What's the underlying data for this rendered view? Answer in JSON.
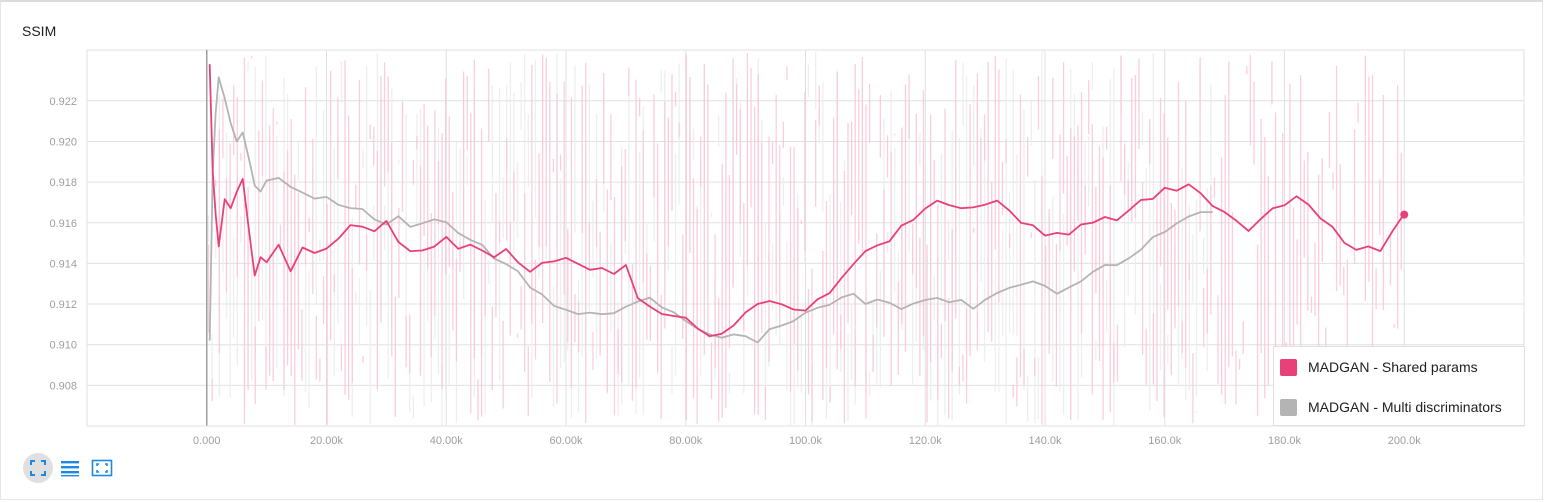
{
  "chart_title": "SSIM",
  "colors": {
    "series_0": "#e8417a",
    "series_1": "#b4b4b4",
    "series_0_raw": "#f8c6d8",
    "series_1_raw": "#ececec",
    "toolbar_icon": "#1e88e5",
    "grid": "#e0e0e0",
    "axis": "#9e9e9e"
  },
  "toolbar": {
    "fit_icon": "fit-to-data-icon",
    "log_icon": "list-lines-icon",
    "select_icon": "selection-box-icon"
  },
  "chart_data": {
    "type": "line",
    "title": "SSIM",
    "xlabel": "",
    "ylabel": "",
    "xlim": [
      -20000,
      220000
    ],
    "ylim": [
      0.906,
      0.9245
    ],
    "grid": true,
    "legend_position": "bottom-right",
    "x_ticks": [
      0,
      20000,
      40000,
      60000,
      80000,
      100000,
      120000,
      140000,
      160000,
      180000,
      200000
    ],
    "x_tick_labels": [
      "0.000",
      "20.00k",
      "40.00k",
      "60.00k",
      "80.00k",
      "100.0k",
      "120.0k",
      "140.0k",
      "160.0k",
      "180.0k",
      "200.0k"
    ],
    "y_ticks": [
      0.908,
      0.91,
      0.912,
      0.914,
      0.916,
      0.918,
      0.92,
      0.922
    ],
    "y_tick_labels": [
      "0.908",
      "0.910",
      "0.912",
      "0.914",
      "0.916",
      "0.918",
      "0.920",
      "0.922"
    ],
    "series": [
      {
        "name": "MADGAN - Shared params",
        "color": "#e8417a",
        "x": [
          500,
          1000,
          1500,
          2000,
          3000,
          4000,
          5000,
          6000,
          7000,
          8000,
          9000,
          10000,
          12000,
          14000,
          16000,
          18000,
          20000,
          22000,
          24000,
          26000,
          28000,
          30000,
          32000,
          34000,
          36000,
          38000,
          40000,
          42000,
          44000,
          46000,
          48000,
          50000,
          52000,
          54000,
          56000,
          58000,
          60000,
          62000,
          64000,
          66000,
          68000,
          70000,
          72000,
          74000,
          76000,
          78000,
          80000,
          82000,
          84000,
          86000,
          88000,
          90000,
          92000,
          94000,
          96000,
          98000,
          100000,
          102000,
          104000,
          106000,
          108000,
          110000,
          112000,
          114000,
          116000,
          118000,
          120000,
          122000,
          124000,
          126000,
          128000,
          130000,
          132000,
          134000,
          136000,
          138000,
          140000,
          142000,
          144000,
          146000,
          148000,
          150000,
          152000,
          154000,
          156000,
          158000,
          160000,
          162000,
          164000,
          166000,
          168000,
          170000,
          172000,
          174000,
          176000,
          178000,
          180000,
          182000,
          184000,
          186000,
          188000,
          190000,
          192000,
          194000,
          196000,
          198000,
          200000
        ],
        "values": [
          0.9238,
          0.9185,
          0.9165,
          0.9148,
          0.9172,
          0.9168,
          0.9176,
          0.9182,
          0.9158,
          0.9135,
          0.9142,
          0.914,
          0.9148,
          0.9136,
          0.9149,
          0.9146,
          0.9147,
          0.9152,
          0.916,
          0.9158,
          0.9155,
          0.9162,
          0.915,
          0.9147,
          0.9146,
          0.9148,
          0.9152,
          0.9148,
          0.9149,
          0.9146,
          0.9144,
          0.9148,
          0.914,
          0.9135,
          0.914,
          0.9141,
          0.9142,
          0.914,
          0.9137,
          0.9138,
          0.9136,
          0.9138,
          0.9124,
          0.9118,
          0.9115,
          0.9115,
          0.9114,
          0.9108,
          0.9105,
          0.9105,
          0.911,
          0.9116,
          0.912,
          0.9122,
          0.912,
          0.9118,
          0.9118,
          0.9122,
          0.9126,
          0.9132,
          0.914,
          0.9145,
          0.915,
          0.9152,
          0.9158,
          0.9162,
          0.9168,
          0.9172,
          0.9168,
          0.9166,
          0.9168,
          0.917,
          0.9172,
          0.9165,
          0.916,
          0.9158,
          0.9154,
          0.9155,
          0.9154,
          0.9158,
          0.916,
          0.9162,
          0.9162,
          0.9165,
          0.917,
          0.9172,
          0.9178,
          0.9176,
          0.918,
          0.9174,
          0.9168,
          0.9165,
          0.916,
          0.9155,
          0.9162,
          0.9168,
          0.9168,
          0.9172,
          0.9168,
          0.9162,
          0.9158,
          0.915,
          0.9146,
          0.9148,
          0.9146,
          0.9155,
          0.9164
        ]
      },
      {
        "name": "MADGAN - Multi discriminators",
        "color": "#b4b4b4",
        "x": [
          500,
          1000,
          1500,
          2000,
          3000,
          4000,
          5000,
          6000,
          7000,
          8000,
          9000,
          10000,
          12000,
          14000,
          16000,
          18000,
          20000,
          22000,
          24000,
          26000,
          28000,
          30000,
          32000,
          34000,
          36000,
          38000,
          40000,
          42000,
          44000,
          46000,
          48000,
          50000,
          52000,
          54000,
          56000,
          58000,
          60000,
          62000,
          64000,
          66000,
          68000,
          70000,
          72000,
          74000,
          76000,
          78000,
          80000,
          82000,
          84000,
          86000,
          88000,
          90000,
          92000,
          94000,
          96000,
          98000,
          100000,
          102000,
          104000,
          106000,
          108000,
          110000,
          112000,
          114000,
          116000,
          118000,
          120000,
          122000,
          124000,
          126000,
          128000,
          130000,
          132000,
          134000,
          136000,
          138000,
          140000,
          142000,
          144000,
          146000,
          148000,
          150000,
          152000,
          154000,
          156000,
          158000,
          160000,
          162000,
          164000,
          166000,
          168000
        ],
        "values": [
          0.9102,
          0.9185,
          0.9215,
          0.9232,
          0.9222,
          0.921,
          0.92,
          0.9204,
          0.9192,
          0.9178,
          0.9176,
          0.918,
          0.9183,
          0.9178,
          0.9175,
          0.9172,
          0.9173,
          0.9168,
          0.9166,
          0.9166,
          0.9162,
          0.916,
          0.9162,
          0.9158,
          0.916,
          0.9162,
          0.916,
          0.9156,
          0.9152,
          0.915,
          0.9142,
          0.914,
          0.9136,
          0.9128,
          0.9124,
          0.912,
          0.9118,
          0.9116,
          0.9116,
          0.9114,
          0.9115,
          0.9118,
          0.9122,
          0.9122,
          0.9118,
          0.9116,
          0.9112,
          0.9108,
          0.9106,
          0.9104,
          0.9105,
          0.9104,
          0.9102,
          0.9108,
          0.911,
          0.9112,
          0.9116,
          0.9118,
          0.912,
          0.9122,
          0.9124,
          0.912,
          0.9122,
          0.912,
          0.9118,
          0.912,
          0.9122,
          0.9124,
          0.9121,
          0.9122,
          0.9118,
          0.9122,
          0.9126,
          0.9128,
          0.913,
          0.9132,
          0.9128,
          0.9126,
          0.9128,
          0.913,
          0.9136,
          0.9138,
          0.914,
          0.9142,
          0.9146,
          0.9152,
          0.9156,
          0.916,
          0.9163,
          0.9165,
          0.9166
        ]
      }
    ]
  }
}
